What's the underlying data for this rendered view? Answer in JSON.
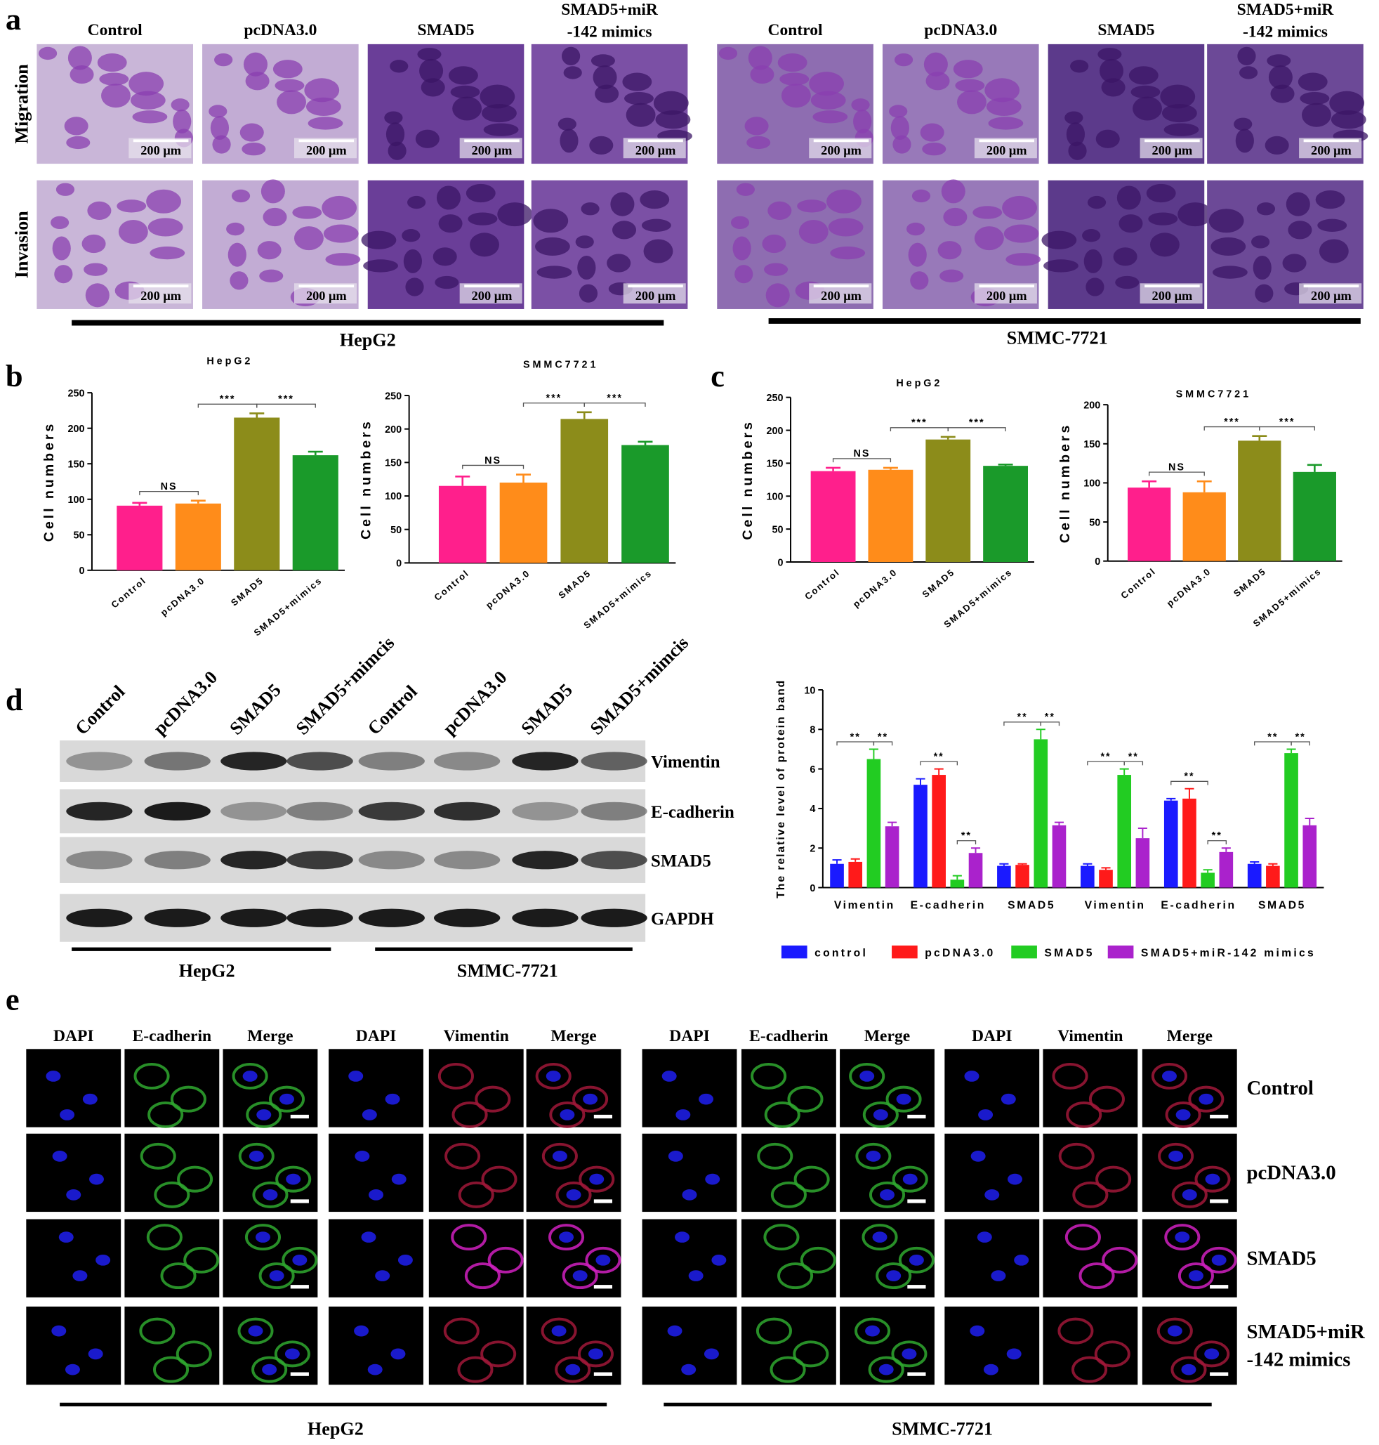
{
  "panel_labels": [
    "a",
    "b",
    "c",
    "d",
    "e"
  ],
  "panel_a": {
    "groups": [
      {
        "name": "HepG2",
        "columns": [
          [
            "Control"
          ],
          [
            "pcDNA3.0"
          ],
          [
            "SMAD5"
          ],
          [
            "SMAD5+miR",
            "-142 mimics"
          ]
        ]
      },
      {
        "name": "SMMC-7721",
        "columns": [
          [
            "Control"
          ],
          [
            "pcDNA3.0"
          ],
          [
            "SMAD5"
          ],
          [
            "SMAD5+miR",
            "-142 mimics"
          ]
        ]
      }
    ],
    "rows": [
      "Migration",
      "Invasion"
    ],
    "scale_bar": "200 μm"
  },
  "chart_data": [
    {
      "type": "bar",
      "title": "HepG2",
      "ylabel": "Cell numbers",
      "categories": [
        "Control",
        "pcDNA3.0",
        "SMAD5",
        "SMAD5+mimics"
      ],
      "values": [
        91,
        94,
        215,
        162
      ],
      "errors": [
        4,
        4,
        6,
        5
      ],
      "colors": [
        "#ff1f8c",
        "#ff8c1a",
        "#8c8c1a",
        "#1a9a2a"
      ],
      "ylim": [
        0,
        250
      ],
      "yticks": [
        0,
        50,
        100,
        150,
        200,
        250
      ],
      "annotations": [
        {
          "label": "NS",
          "from": "Control",
          "to": "pcDNA3.0"
        },
        {
          "label": "***",
          "from": "pcDNA3.0",
          "to": "SMAD5"
        },
        {
          "label": "***",
          "from": "SMAD5",
          "to": "SMAD5+mimics"
        }
      ]
    },
    {
      "type": "bar",
      "title": "SMMC7721",
      "ylabel": "Cell numbers",
      "categories": [
        "Control",
        "pcDNA3.0",
        "SMAD5",
        "SMAD5+mimics"
      ],
      "values": [
        115,
        120,
        215,
        176
      ],
      "errors": [
        14,
        12,
        10,
        5
      ],
      "colors": [
        "#ff1f8c",
        "#ff8c1a",
        "#8c8c1a",
        "#1a9a2a"
      ],
      "ylim": [
        0,
        250
      ],
      "yticks": [
        0,
        50,
        100,
        150,
        200,
        250
      ],
      "annotations": [
        {
          "label": "NS",
          "from": "Control",
          "to": "pcDNA3.0"
        },
        {
          "label": "***",
          "from": "pcDNA3.0",
          "to": "SMAD5"
        },
        {
          "label": "***",
          "from": "SMAD5",
          "to": "SMAD5+mimics"
        }
      ]
    },
    {
      "type": "bar",
      "title": "HepG2",
      "ylabel": "Cell numbers",
      "categories": [
        "Control",
        "pcDNA3.0",
        "SMAD5",
        "SMAD5+mimics"
      ],
      "values": [
        138,
        140,
        186,
        146
      ],
      "errors": [
        5,
        3,
        4,
        2
      ],
      "colors": [
        "#ff1f8c",
        "#ff8c1a",
        "#8c8c1a",
        "#1a9a2a"
      ],
      "ylim": [
        0,
        250
      ],
      "yticks": [
        0,
        50,
        100,
        150,
        200,
        250
      ],
      "annotations": [
        {
          "label": "NS",
          "from": "Control",
          "to": "pcDNA3.0"
        },
        {
          "label": "***",
          "from": "pcDNA3.0",
          "to": "SMAD5"
        },
        {
          "label": "***",
          "from": "SMAD5",
          "to": "SMAD5+mimics"
        }
      ]
    },
    {
      "type": "bar",
      "title": "SMMC7721",
      "ylabel": "Cell numbers",
      "categories": [
        "Control",
        "pcDNA3.0",
        "SMAD5",
        "SMAD5+mimics"
      ],
      "values": [
        94,
        88,
        154,
        114
      ],
      "errors": [
        8,
        14,
        6,
        9
      ],
      "colors": [
        "#ff1f8c",
        "#ff8c1a",
        "#8c8c1a",
        "#1a9a2a"
      ],
      "ylim": [
        0,
        200
      ],
      "yticks": [
        0,
        50,
        100,
        150,
        200
      ],
      "annotations": [
        {
          "label": "NS",
          "from": "Control",
          "to": "pcDNA3.0"
        },
        {
          "label": "***",
          "from": "pcDNA3.0",
          "to": "SMAD5"
        },
        {
          "label": "***",
          "from": "SMAD5",
          "to": "SMAD5+mimics"
        }
      ]
    },
    {
      "type": "grouped_bar",
      "ylabel": "The relative level of protein band",
      "categories": [
        "Vimentin",
        "E-cadherin",
        "SMAD5",
        "Vimentin",
        "E-cadherin",
        "SMAD5"
      ],
      "series": [
        {
          "name": "control",
          "color": "#1a1aff",
          "values": [
            1.2,
            5.2,
            1.1,
            1.1,
            4.4,
            1.2
          ],
          "errors": [
            0.2,
            0.3,
            0.1,
            0.1,
            0.1,
            0.1
          ]
        },
        {
          "name": "pcDNA3.0",
          "color": "#ff1a1a",
          "values": [
            1.3,
            5.7,
            1.15,
            0.9,
            4.5,
            1.1
          ],
          "errors": [
            0.15,
            0.3,
            0.05,
            0.1,
            0.5,
            0.1
          ]
        },
        {
          "name": "SMAD5",
          "color": "#22cc22",
          "values": [
            6.5,
            0.4,
            7.5,
            5.7,
            0.75,
            6.8
          ],
          "errors": [
            0.5,
            0.2,
            0.5,
            0.3,
            0.15,
            0.2
          ]
        },
        {
          "name": "SMAD5+miR-142 mimics",
          "color": "#aa22cc",
          "values": [
            3.1,
            1.75,
            3.15,
            2.5,
            1.8,
            3.15
          ],
          "errors": [
            0.2,
            0.25,
            0.15,
            0.5,
            0.2,
            0.35
          ]
        }
      ],
      "ylim": [
        0,
        10
      ],
      "yticks": [
        0,
        2,
        4,
        6,
        8,
        10
      ],
      "annotations": [
        "**",
        "**",
        "**",
        "**",
        "**",
        "**",
        "**",
        "**",
        "**",
        "**",
        "**",
        "**"
      ]
    }
  ],
  "panel_d": {
    "lanes": [
      "Control",
      "pcDNA3.0",
      "SMAD5",
      "SMAD5+mimcis",
      "Control",
      "pcDNA3.0",
      "SMAD5",
      "SMAD5+mimcis"
    ],
    "proteins": [
      "Vimentin",
      "E-cadherin",
      "SMAD5",
      "GAPDH"
    ],
    "groups": [
      "HepG2",
      "SMMC-7721"
    ]
  },
  "panel_e": {
    "groups": [
      "HepG2",
      "SMMC-7721"
    ],
    "columns": [
      "DAPI",
      "E-cadherin",
      "Merge",
      "DAPI",
      "Vimentin",
      "Merge"
    ],
    "rows": [
      [
        "Control"
      ],
      [
        "pcDNA3.0"
      ],
      [
        "SMAD5"
      ],
      [
        "SMAD5+miR",
        "-142 mimics"
      ]
    ]
  }
}
